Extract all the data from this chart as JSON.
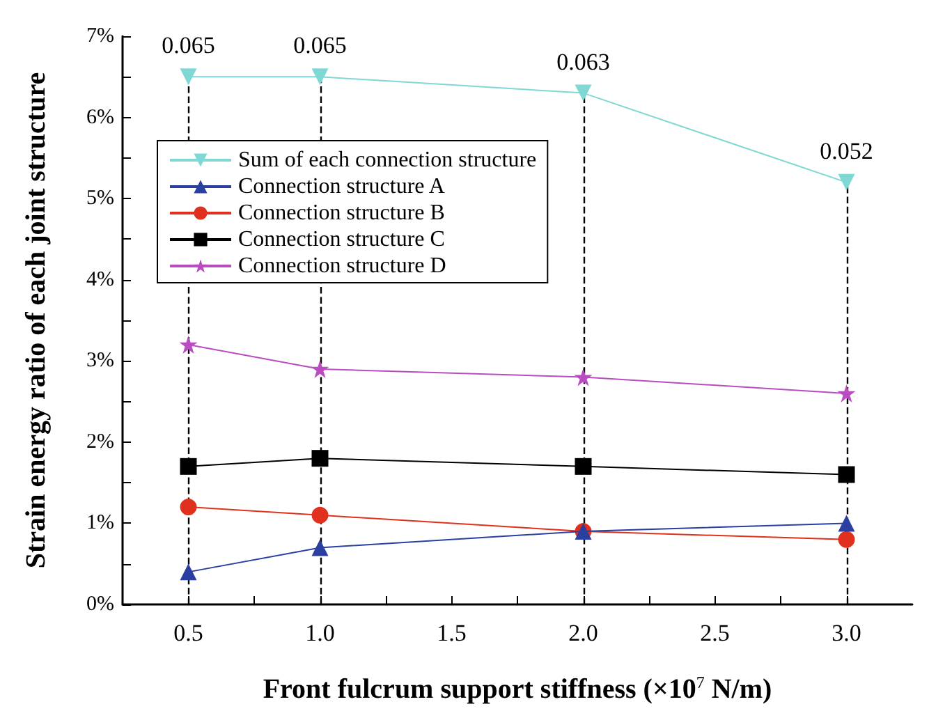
{
  "chart_data": {
    "type": "line",
    "xlabel": "Front fulcrum support stiffness (×10$^{7}$ N/m)",
    "ylabel": "Strain energy ratio of each joint structure",
    "x": [
      0.5,
      1,
      2,
      3
    ],
    "series": [
      {
        "name": "Sum of each connection structure",
        "color": "#7fd8d4",
        "marker": "triangle_down",
        "values": [
          0.065,
          0.065,
          0.063,
          0.052
        ],
        "value_labels": [
          "0.065",
          "0.065",
          "0.063",
          "0.052"
        ]
      },
      {
        "name": "Connection structure A",
        "color": "#2b3fa0",
        "marker": "triangle",
        "values": [
          0.004,
          0.007,
          0.009,
          0.01
        ]
      },
      {
        "name": "Connection structure B",
        "color": "#e0301e",
        "marker": "circle",
        "values": [
          0.012,
          0.011,
          0.009,
          0.008
        ]
      },
      {
        "name": "Connection structure C",
        "color": "#000000",
        "marker": "square",
        "values": [
          0.017,
          0.018,
          0.017,
          0.016
        ]
      },
      {
        "name": "Connection structure D",
        "color": "#b84cc0",
        "marker": "star",
        "values": [
          0.032,
          0.029,
          0.028,
          0.026
        ]
      }
    ],
    "xlim": [
      0.25,
      3.25
    ],
    "xticks": [
      {
        "value": 0.5,
        "label": "0.5"
      },
      {
        "value": 0.75,
        "label": null
      },
      {
        "value": 1,
        "label": "1.0"
      },
      {
        "value": 1.25,
        "label": null
      },
      {
        "value": 1.5,
        "label": "1.5"
      },
      {
        "value": 1.75,
        "label": null
      },
      {
        "value": 2,
        "label": "2.0"
      },
      {
        "value": 2.25,
        "label": null
      },
      {
        "value": 2.5,
        "label": "2.5"
      },
      {
        "value": 2.75,
        "label": null
      },
      {
        "value": 3,
        "label": "3.0"
      }
    ],
    "ylim": [
      0,
      0.07
    ],
    "yticks": [
      {
        "value": 0,
        "label": "0%"
      },
      {
        "value": 0.005,
        "label": null
      },
      {
        "value": 0.01,
        "label": "1%"
      },
      {
        "value": 0.015,
        "label": null
      },
      {
        "value": 0.02,
        "label": "2%"
      },
      {
        "value": 0.025,
        "label": null
      },
      {
        "value": 0.03,
        "label": "3%"
      },
      {
        "value": 0.035,
        "label": null
      },
      {
        "value": 0.04,
        "label": "4%"
      },
      {
        "value": 0.045,
        "label": null
      },
      {
        "value": 0.05,
        "label": "5%"
      },
      {
        "value": 0.055,
        "label": null
      },
      {
        "value": 0.06,
        "label": "6%"
      },
      {
        "value": 0.065,
        "label": null
      },
      {
        "value": 0.07,
        "label": "7%"
      }
    ],
    "ref_lines": [
      {
        "axis": "x",
        "value": 0.5,
        "color": "#000000",
        "line_style": "dashed"
      },
      {
        "axis": "x",
        "value": 1,
        "color": "#000000",
        "line_style": "dashed"
      },
      {
        "axis": "x",
        "value": 2,
        "color": "#000000",
        "line_style": "dashed"
      },
      {
        "axis": "x",
        "value": 3,
        "color": "#000000",
        "line_style": "dashed"
      }
    ],
    "grid": false,
    "legend": "top left",
    "line_style": "solid"
  }
}
